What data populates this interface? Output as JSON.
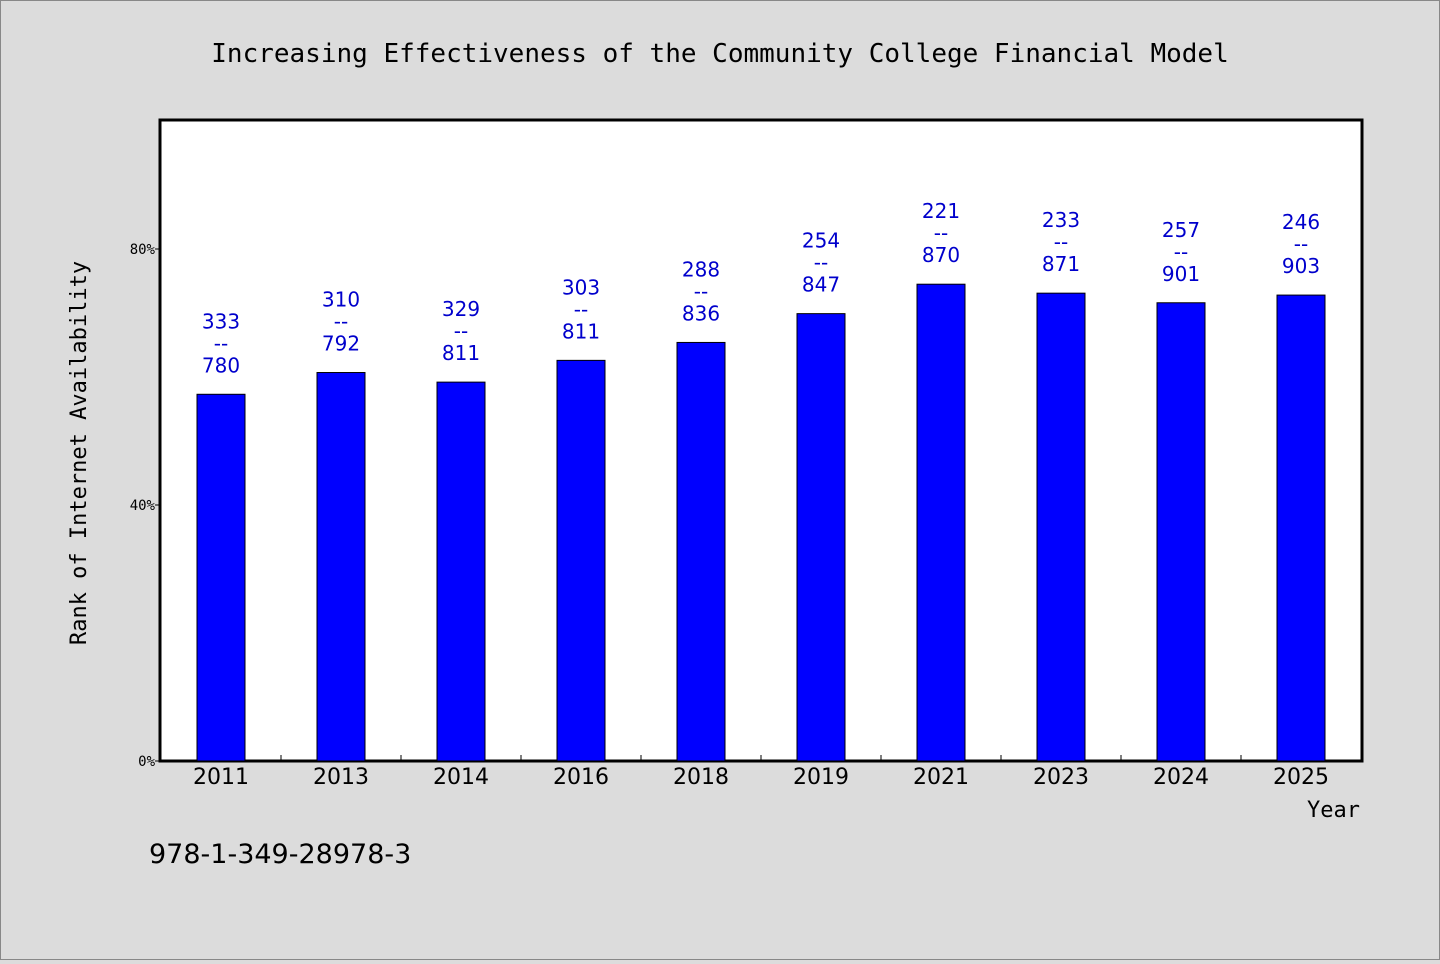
{
  "chart_data": {
    "type": "bar",
    "title": "Increasing Effectiveness of the Community College Financial Model",
    "xlabel": "Year",
    "ylabel": "Rank of Internet Availability",
    "categories": [
      "2011",
      "2013",
      "2014",
      "2016",
      "2018",
      "2019",
      "2021",
      "2023",
      "2024",
      "2025"
    ],
    "values": [
      57.3,
      60.7,
      59.2,
      62.6,
      65.4,
      69.9,
      74.5,
      73.1,
      71.6,
      72.8
    ],
    "labels_top": [
      "333",
      "310",
      "329",
      "303",
      "288",
      "254",
      "221",
      "233",
      "257",
      "246"
    ],
    "labels_sep": "--",
    "labels_bottom": [
      "780",
      "792",
      "811",
      "811",
      "836",
      "847",
      "870",
      "871",
      "901",
      "903"
    ],
    "yticks": [
      0,
      40,
      80
    ],
    "ytick_labels": [
      "0%",
      "40%",
      "80%"
    ],
    "ylim": [
      0,
      100
    ],
    "grid": false,
    "bar_color": "#0000ff",
    "label_color": "#0000cc",
    "plot_background": "#ffffff",
    "page_background": "#dcdcdc"
  },
  "footer": {
    "isbn": "978-1-349-28978-3"
  }
}
